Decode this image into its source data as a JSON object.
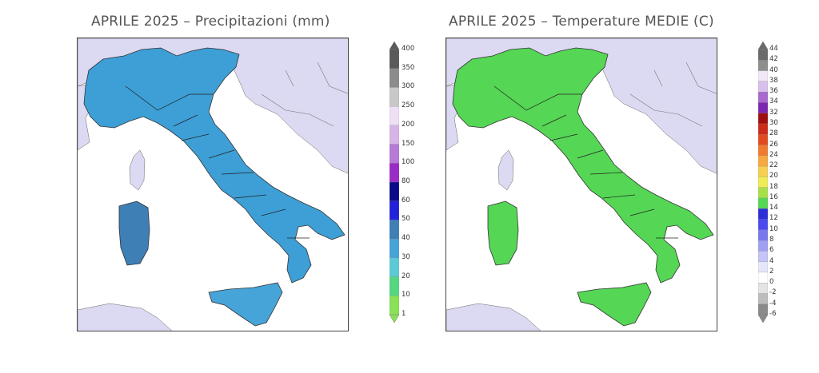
{
  "panels": [
    {
      "title": "APRILE 2025 – Precipitazioni (mm)",
      "colorbar": {
        "labels": [
          "400",
          "350",
          "300",
          "250",
          "200",
          "150",
          "100",
          "80",
          "60",
          "50",
          "40",
          "30",
          "20",
          "10",
          "1"
        ],
        "colors": [
          "#5a5a5a",
          "#8c8c8c",
          "#c8c8c8",
          "#efe0f5",
          "#d7b4e8",
          "#b77ad6",
          "#9b2bc6",
          "#0a0a8a",
          "#2222dd",
          "#3e7fb6",
          "#47a4d8",
          "#5cc9d6",
          "#55d680",
          "#8ae057"
        ]
      }
    },
    {
      "title": "APRILE 2025 – Temperature MEDIE (C)",
      "colorbar": {
        "labels": [
          "44",
          "42",
          "40",
          "38",
          "36",
          "34",
          "32",
          "30",
          "28",
          "26",
          "24",
          "22",
          "20",
          "18",
          "16",
          "14",
          "12",
          "10",
          "8",
          "6",
          "4",
          "2",
          "0",
          "-2",
          "-4",
          "-6"
        ],
        "colors": [
          "#6a6a6a",
          "#8e8e8e",
          "#f0e8f6",
          "#d8c0ec",
          "#a86ad0",
          "#7d28b0",
          "#a00f0f",
          "#cc2a1a",
          "#e24a20",
          "#f07a30",
          "#f7a840",
          "#f8cf50",
          "#f0ec56",
          "#a8e04a",
          "#55d655",
          "#2e2ed8",
          "#4a4af0",
          "#7878ee",
          "#a0a0f2",
          "#c4c4f6",
          "#e6e6fa",
          "#ffffff",
          "#e4e4e4",
          "#bdbdbd",
          "#8a8a8a"
        ]
      }
    }
  ]
}
